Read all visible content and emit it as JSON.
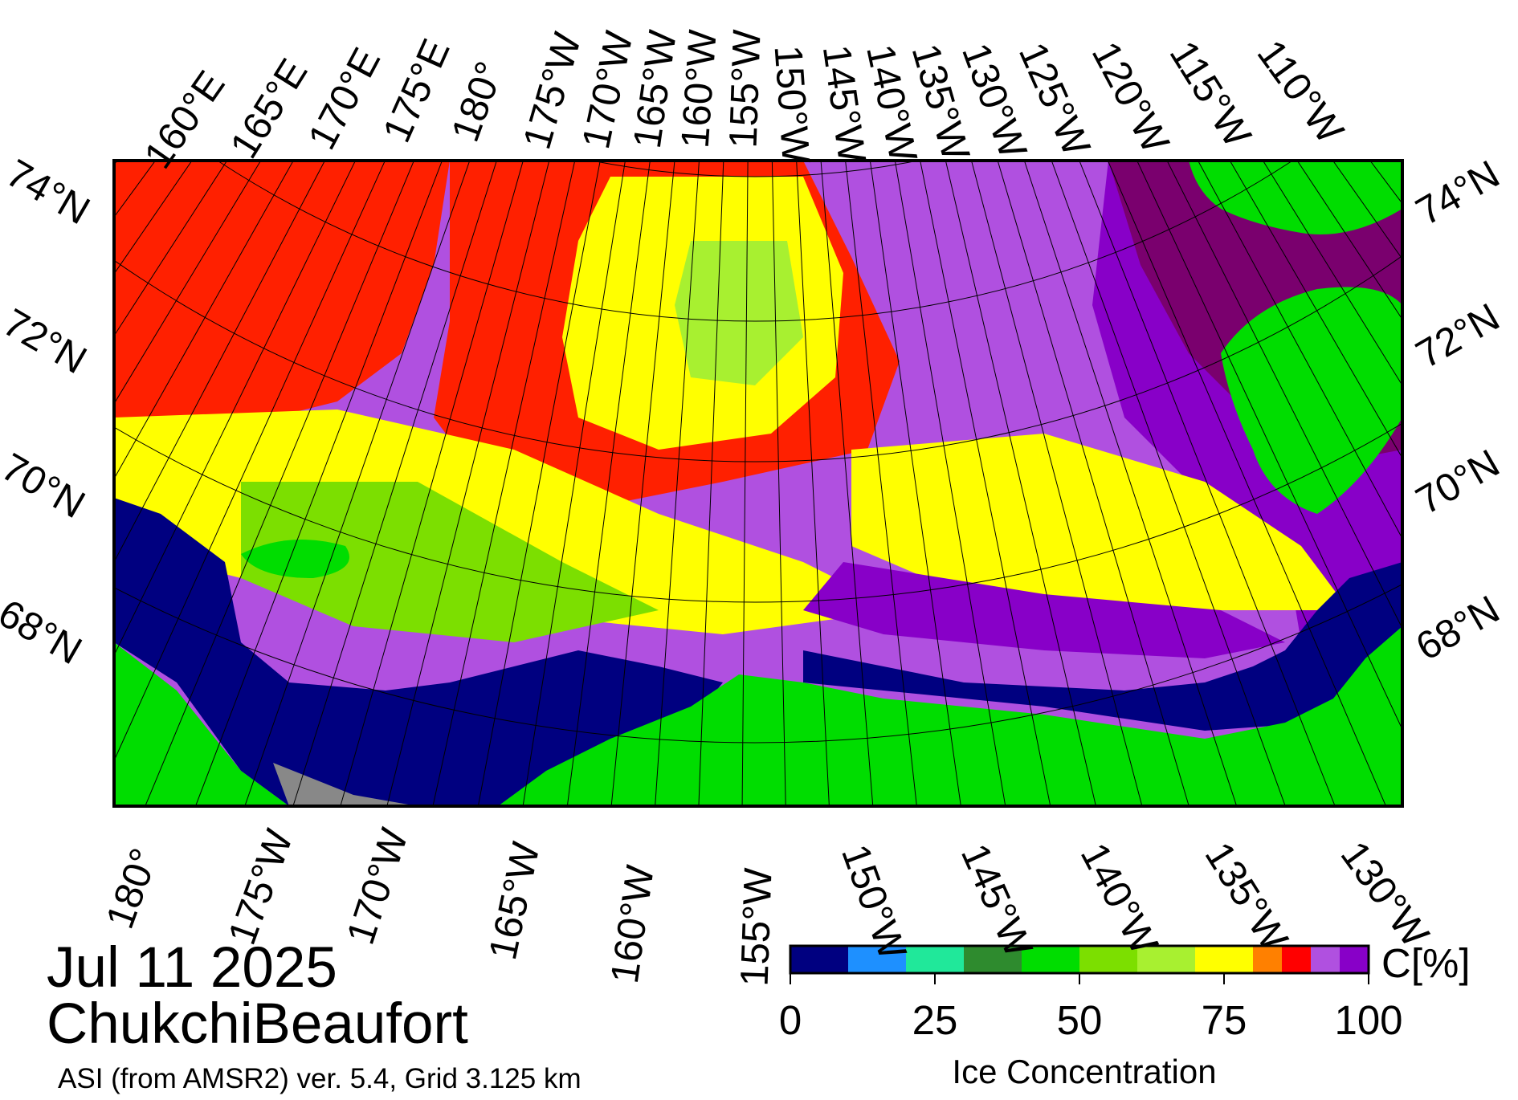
{
  "date": "Jul 11 2025",
  "region": "ChukchiBeaufort",
  "source": "ASI (from AMSR2) ver. 5.4,  Grid 3.125 km",
  "colors": {
    "land": "#00dd00",
    "open_water": "#000080",
    "no_data": "#888888",
    "frame": "#000000",
    "gridline": "#000000"
  },
  "map": {
    "top_longitude_labels": [
      "160°E",
      "165°E",
      "170°E",
      "175°E",
      "180°",
      "175°W",
      "170°W",
      "165°W",
      "160°W",
      "155°W",
      "150°W",
      "145°W",
      "140°W",
      "135°W",
      "130°W",
      "125°W",
      "120°W",
      "115°W",
      "110°W"
    ],
    "bottom_longitude_labels": [
      "180°",
      "175°W",
      "170°W",
      "165°W",
      "160°W",
      "155°W",
      "150°W",
      "145°W",
      "140°W",
      "135°W",
      "130°W"
    ],
    "latitude_labels": [
      "74°N",
      "72°N",
      "70°N",
      "68°N"
    ]
  },
  "colorbar": {
    "title": "Ice Concentration",
    "unit": "C[%]",
    "ticks": [
      "0",
      "25",
      "50",
      "75",
      "100"
    ],
    "bins": [
      {
        "from": 0,
        "to": 10,
        "color": "#000080"
      },
      {
        "from": 10,
        "to": 20,
        "color": "#1e90ff"
      },
      {
        "from": 20,
        "to": 30,
        "color": "#20e89a"
      },
      {
        "from": 30,
        "to": 40,
        "color": "#2e8b2e"
      },
      {
        "from": 40,
        "to": 50,
        "color": "#00dd00"
      },
      {
        "from": 50,
        "to": 60,
        "color": "#7cdf00"
      },
      {
        "from": 60,
        "to": 70,
        "color": "#a8f030"
      },
      {
        "from": 70,
        "to": 80,
        "color": "#ffff00"
      },
      {
        "from": 80,
        "to": 85,
        "color": "#ff8000"
      },
      {
        "from": 85,
        "to": 90,
        "color": "#ff0000"
      },
      {
        "from": 90,
        "to": 95,
        "color": "#b050e0"
      },
      {
        "from": 95,
        "to": 100,
        "color": "#8800c8"
      }
    ],
    "darkest_ice_color": "#7a006e"
  }
}
